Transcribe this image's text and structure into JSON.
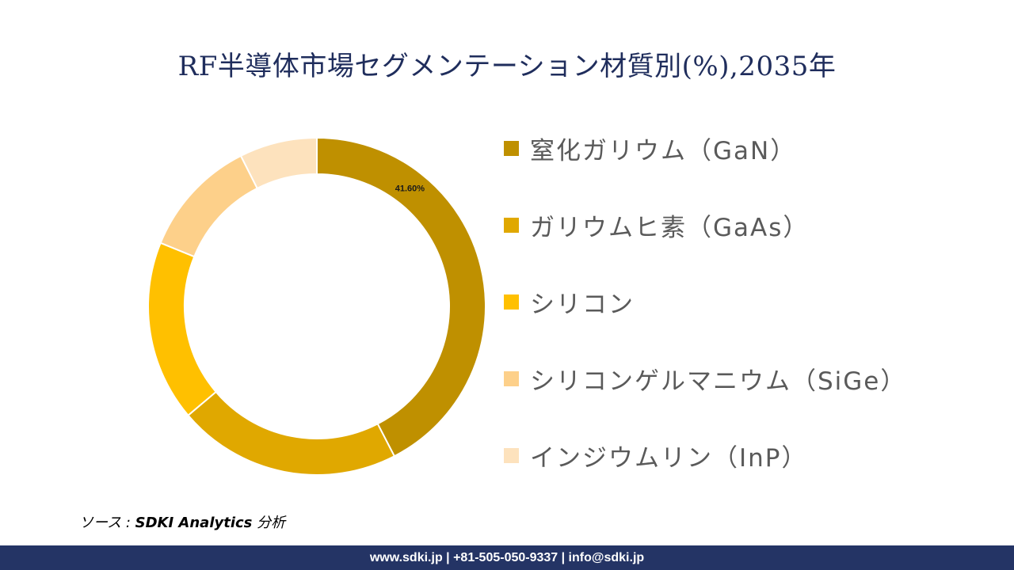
{
  "title": "RF半導体市場セグメンテーション材質別(%),2035年",
  "chart_data": {
    "type": "pie",
    "subtype": "donut",
    "title": "RF半導体市場セグメンテーション材質別(%),2035年",
    "categories": [
      "窒化ガリウム（GaN）",
      "ガリウムヒ素（GaAs）",
      "シリコン",
      "シリコンゲルマニウム（SiGe）",
      "インジウムリン（InP）"
    ],
    "values": [
      41.6,
      21.0,
      17.0,
      11.2,
      7.3
    ],
    "data_labels": [
      "41.60%",
      "",
      "",
      "",
      ""
    ],
    "colors": [
      "#bf9000",
      "#e0a800",
      "#ffc000",
      "#fdd08a",
      "#fde2bd"
    ],
    "legend_position": "right"
  },
  "legend": {
    "items": [
      {
        "label": "窒化ガリウム（GaN）",
        "color": "#bf9000"
      },
      {
        "label": "ガリウムヒ素（GaAs）",
        "color": "#e0a800"
      },
      {
        "label": "シリコン",
        "color": "#ffc000"
      },
      {
        "label": "シリコンゲルマニウム（SiGe）",
        "color": "#fdd08a"
      },
      {
        "label": "インジウムリン（InP）",
        "color": "#fde2bd"
      }
    ]
  },
  "source": {
    "prefix": "ソース : ",
    "name": "SDKI Analytics",
    "suffix": " 分析"
  },
  "footer": {
    "contact": "www.sdki.jp | +81-505-050-9337 | info@sdki.jp"
  }
}
